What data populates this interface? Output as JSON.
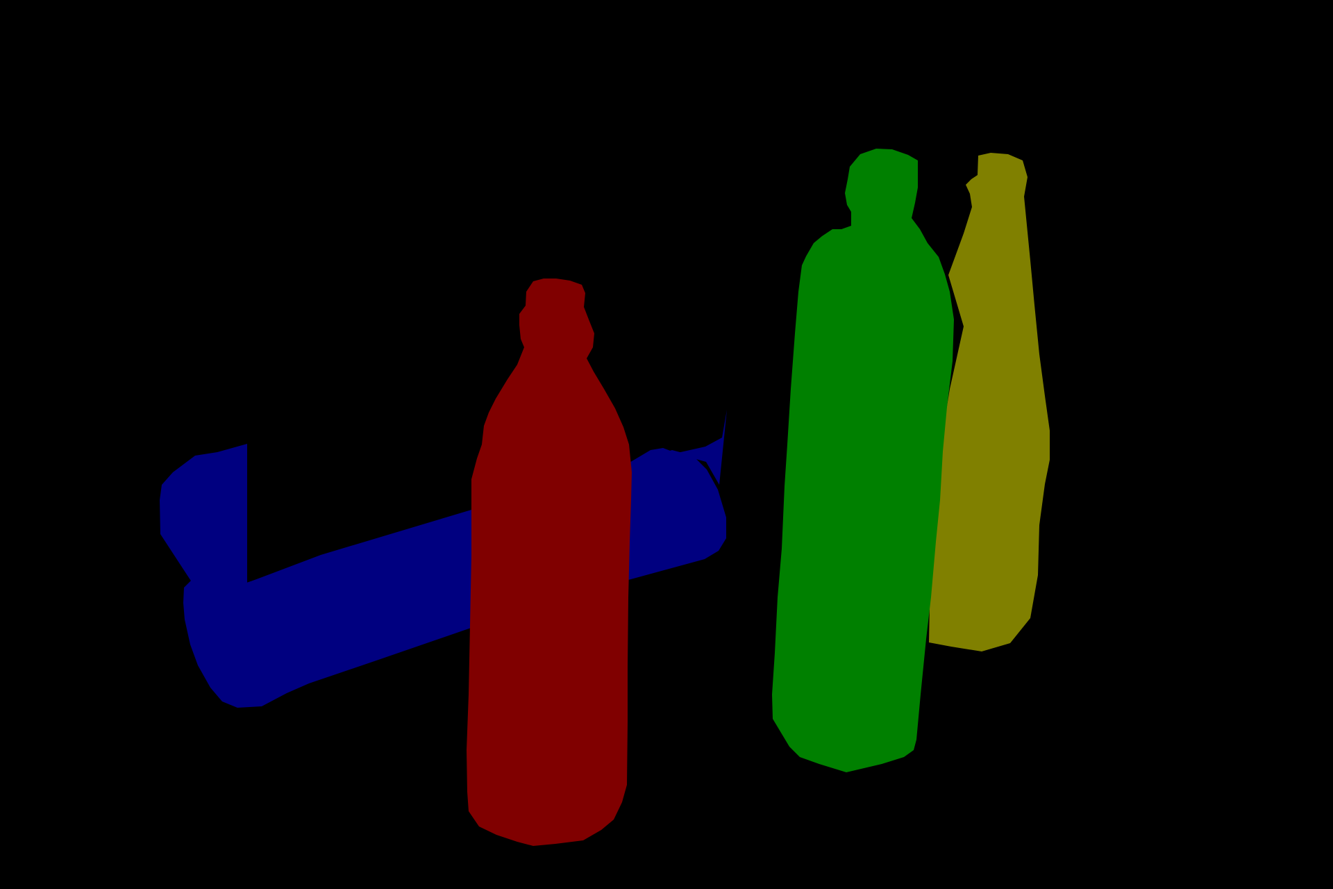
{
  "background": "#000000",
  "masks": [
    {
      "id": "blue-bottle",
      "label": "",
      "color": "#000080"
    },
    {
      "id": "red-bottle",
      "label": "",
      "color": "#800000"
    },
    {
      "id": "yellow-bottle",
      "label": "",
      "color": "#808000"
    },
    {
      "id": "green-bottle",
      "label": "",
      "color": "#008000"
    }
  ]
}
